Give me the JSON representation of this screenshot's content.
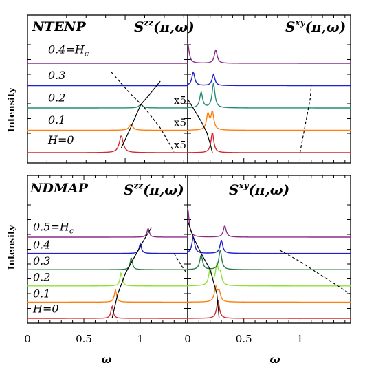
{
  "chart_data": [
    {
      "type": "line",
      "panel": "top-left",
      "sample": "NTENP",
      "title": "S^zz(π,ω)",
      "ylabel": "Intensity",
      "xlim": [
        0,
        0.82
      ],
      "ylim": [
        -0.15,
        7.5
      ],
      "series": [
        {
          "name": "H=0",
          "field": 0.0,
          "baseline": 0.0,
          "color": "#d62728",
          "peak_omega": 0.48,
          "peak_height": 0.75
        },
        {
          "name": "0.1",
          "field": 0.1,
          "baseline": 1.0,
          "color": "#ff7f0e",
          "peak_omega": 0.53,
          "peak_height": 0.25
        },
        {
          "name": "0.2",
          "field": 0.2,
          "baseline": 2.0,
          "color": "#238b71",
          "peak_omega": 0.58,
          "peak_height": 0.15
        },
        {
          "name": "0.3",
          "field": 0.3,
          "baseline": 3.0,
          "color": "#1f1fcf",
          "peak_omega": 0.6,
          "peak_height": 0.0
        },
        {
          "name": "0.4=H_c",
          "field": 0.4,
          "baseline": 4.0,
          "color": "#8b2c8b",
          "peak_omega": 0.6,
          "peak_height": 0.0
        }
      ],
      "solid_guide": {
        "omega": [
          0.48,
          0.53,
          0.58,
          0.62,
          0.68
        ],
        "y": [
          0.2,
          1.15,
          2.15,
          2.55,
          3.2
        ]
      },
      "dashed_guide": {
        "omega": [
          0.43,
          0.52,
          0.6,
          0.68,
          0.75
        ],
        "y": [
          3.6,
          2.7,
          2.0,
          1.1,
          0.05
        ]
      },
      "labels": [
        {
          "text": "0.4=H",
          "sub": "c",
          "y": 4.45
        },
        {
          "text": "0.3",
          "y": 3.3
        },
        {
          "text": "0.2",
          "y": 2.3
        },
        {
          "text": "0.1",
          "y": 1.3
        },
        {
          "text": "H=0",
          "y": 0.4
        }
      ]
    },
    {
      "type": "line",
      "panel": "top-right",
      "title": "S^xy(π,ω)",
      "xlim": [
        0,
        1.45
      ],
      "ylim": [
        -0.15,
        7.5
      ],
      "scale_notes": [
        "x5",
        "x5",
        "x5"
      ],
      "series": [
        {
          "name": "H=0",
          "field": 0.0,
          "baseline": 0.0,
          "color": "#d62728",
          "peaks": [
            [
              0.22,
              0.9
            ]
          ]
        },
        {
          "name": "0.1",
          "field": 0.1,
          "baseline": 1.0,
          "color": "#ff7f0e",
          "peaks": [
            [
              0.18,
              0.7
            ],
            [
              0.22,
              0.8
            ]
          ]
        },
        {
          "name": "0.2",
          "field": 0.2,
          "baseline": 2.0,
          "color": "#238b71",
          "peaks": [
            [
              0.12,
              0.7
            ],
            [
              0.23,
              1.1
            ]
          ]
        },
        {
          "name": "0.3",
          "field": 0.3,
          "baseline": 3.0,
          "color": "#1f1fcf",
          "peaks": [
            [
              0.05,
              0.6
            ],
            [
              0.23,
              0.5
            ]
          ]
        },
        {
          "name": "0.4=H_c",
          "field": 0.4,
          "baseline": 4.0,
          "color": "#8b2c8b",
          "peaks": [
            [
              0.0,
              0.9
            ],
            [
              0.25,
              0.6
            ]
          ]
        }
      ],
      "solid_guide": {
        "omega": [
          0.0,
          0.06,
          0.12,
          0.17,
          0.2,
          0.22
        ],
        "y": [
          2.4,
          1.9,
          1.4,
          0.9,
          0.4,
          0.0
        ]
      },
      "dashed_guide": {
        "omega": [
          1.0,
          1.03,
          1.06,
          1.09,
          1.1
        ],
        "y": [
          0.0,
          0.8,
          1.6,
          2.4,
          3.0
        ]
      }
    },
    {
      "type": "line",
      "panel": "bottom-left",
      "sample": "NDMAP",
      "title": "S^zz(π,ω)",
      "ylabel": "Intensity",
      "xlabel": "ω",
      "xlim": [
        0,
        1.42
      ],
      "x_ticks": [
        0,
        0.5,
        1
      ],
      "ylim": [
        -0.2,
        8.5
      ],
      "series": [
        {
          "name": "H=0",
          "field": 0.0,
          "baseline": 0.0,
          "color": "#d62728",
          "peak_omega": 0.75,
          "peak_height": 0.75
        },
        {
          "name": "0.1",
          "field": 0.1,
          "baseline": 1.0,
          "color": "#ff7f0e",
          "peak_omega": 0.78,
          "peak_height": 0.75
        },
        {
          "name": "0.2",
          "field": 0.2,
          "baseline": 2.0,
          "color": "#8de03c",
          "peak_omega": 0.83,
          "peak_height": 0.8
        },
        {
          "name": "0.3",
          "field": 0.3,
          "baseline": 3.0,
          "color": "#2a7a46",
          "peak_omega": 0.92,
          "peak_height": 0.75
        },
        {
          "name": "0.4",
          "field": 0.4,
          "baseline": 4.0,
          "color": "#1f1fcf",
          "peak_omega": 1.0,
          "peak_height": 0.6
        },
        {
          "name": "0.5=H_c",
          "field": 0.5,
          "baseline": 5.0,
          "color": "#8b2c8b",
          "peak_omega": 1.07,
          "peak_height": 0.55
        }
      ],
      "solid_guide": {
        "omega": [
          0.75,
          0.8,
          0.87,
          0.95,
          1.03,
          1.1
        ],
        "y": [
          0.0,
          1.5,
          2.8,
          3.8,
          4.8,
          5.6
        ]
      },
      "dashed_guide": {
        "omega": [
          1.3,
          1.36,
          1.41
        ],
        "y": [
          4.0,
          3.3,
          2.8
        ]
      },
      "labels": [
        {
          "text": "0.5=H",
          "sub": "c",
          "y": 5.4
        },
        {
          "text": "0.4",
          "y": 4.3
        },
        {
          "text": "0.3",
          "y": 3.3
        },
        {
          "text": "0.2",
          "y": 2.3
        },
        {
          "text": "0.1",
          "y": 1.3
        },
        {
          "text": "H=0",
          "y": 0.35
        }
      ]
    },
    {
      "type": "line",
      "panel": "bottom-right",
      "title": "S^xy(π,ω)",
      "xlabel": "ω",
      "xlim": [
        0,
        1.45
      ],
      "x_ticks": [
        0,
        0.5,
        1
      ],
      "ylim": [
        -0.2,
        8.5
      ],
      "series": [
        {
          "name": "H=0",
          "field": 0.0,
          "baseline": 0.0,
          "color": "#d62728",
          "peaks": [
            [
              0.27,
              1.1
            ]
          ]
        },
        {
          "name": "0.1",
          "field": 0.1,
          "baseline": 1.0,
          "color": "#ff7f0e",
          "peaks": [
            [
              0.25,
              0.9
            ],
            [
              0.28,
              0.6
            ]
          ]
        },
        {
          "name": "0.2",
          "field": 0.2,
          "baseline": 2.0,
          "color": "#8de03c",
          "peaks": [
            [
              0.2,
              1.0
            ],
            [
              0.26,
              1.2
            ],
            [
              0.29,
              0.7
            ]
          ]
        },
        {
          "name": "0.3",
          "field": 0.3,
          "baseline": 3.0,
          "color": "#2a7a46",
          "peaks": [
            [
              0.12,
              0.9
            ],
            [
              0.29,
              1.2
            ]
          ]
        },
        {
          "name": "0.4",
          "field": 0.4,
          "baseline": 4.0,
          "color": "#1f1fcf",
          "peaks": [
            [
              0.05,
              1.0
            ],
            [
              0.3,
              0.8
            ]
          ]
        },
        {
          "name": "0.5=H_c",
          "field": 0.5,
          "baseline": 5.0,
          "color": "#8b2c8b",
          "peaks": [
            [
              0.0,
              1.8
            ],
            [
              0.33,
              0.7
            ]
          ]
        }
      ],
      "solid_guide": {
        "omega": [
          0.0,
          0.05,
          0.12,
          0.2,
          0.26,
          0.28
        ],
        "y": [
          6.0,
          5.0,
          4.0,
          3.0,
          1.5,
          0.0
        ]
      },
      "dashed_guide": {
        "omega": [
          0.82,
          1.0,
          1.2,
          1.45
        ],
        "y": [
          4.2,
          3.5,
          2.6,
          1.5
        ]
      }
    }
  ]
}
